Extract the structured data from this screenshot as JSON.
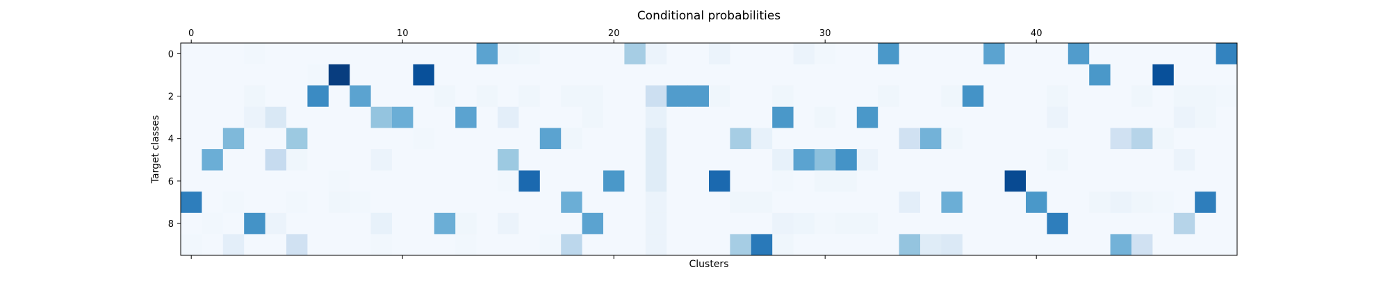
{
  "chart_data": {
    "type": "heatmap",
    "title": "Conditional probabilities",
    "xlabel": "Clusters",
    "ylabel": "Target classes",
    "x_axis_position": "top",
    "x_ticks": [
      "0",
      "10",
      "20",
      "30",
      "40"
    ],
    "x_tick_values": [
      0,
      10,
      20,
      30,
      40
    ],
    "y_ticks": [
      "0",
      "2",
      "4",
      "6",
      "8"
    ],
    "y_tick_values": [
      0,
      2,
      4,
      6,
      8
    ],
    "n_clusters": 50,
    "n_classes": 10,
    "colormap": "Blues",
    "vmin": 0,
    "vmax": 1,
    "grid": false,
    "values": [
      [
        0.02,
        0.02,
        0.02,
        0.03,
        0.02,
        0.02,
        0.02,
        0.02,
        0.02,
        0.02,
        0.02,
        0.02,
        0.02,
        0.02,
        0.55,
        0.05,
        0.04,
        0.02,
        0.02,
        0.02,
        0.02,
        0.35,
        0.06,
        0.02,
        0.02,
        0.06,
        0.02,
        0.02,
        0.02,
        0.06,
        0.03,
        0.02,
        0.02,
        0.6,
        0.02,
        0.02,
        0.02,
        0.02,
        0.55,
        0.02,
        0.02,
        0.02,
        0.58,
        0.02,
        0.02,
        0.02,
        0.02,
        0.02,
        0.02,
        0.68
      ],
      [
        0.02,
        0.02,
        0.02,
        0.02,
        0.02,
        0.02,
        0.03,
        0.95,
        0.02,
        0.02,
        0.02,
        0.88,
        0.02,
        0.02,
        0.02,
        0.02,
        0.02,
        0.02,
        0.02,
        0.02,
        0.02,
        0.02,
        0.02,
        0.02,
        0.02,
        0.02,
        0.02,
        0.02,
        0.02,
        0.02,
        0.02,
        0.02,
        0.02,
        0.02,
        0.02,
        0.02,
        0.02,
        0.02,
        0.02,
        0.02,
        0.02,
        0.02,
        0.02,
        0.6,
        0.02,
        0.02,
        0.88,
        0.02,
        0.02,
        0.02
      ],
      [
        0.02,
        0.02,
        0.02,
        0.04,
        0.02,
        0.02,
        0.65,
        0.02,
        0.55,
        0.02,
        0.02,
        0.02,
        0.04,
        0.02,
        0.04,
        0.02,
        0.04,
        0.02,
        0.04,
        0.04,
        0.02,
        0.02,
        0.22,
        0.58,
        0.58,
        0.04,
        0.02,
        0.02,
        0.04,
        0.02,
        0.02,
        0.02,
        0.02,
        0.04,
        0.02,
        0.02,
        0.04,
        0.62,
        0.02,
        0.02,
        0.02,
        0.04,
        0.02,
        0.02,
        0.02,
        0.04,
        0.02,
        0.04,
        0.04,
        0.03
      ],
      [
        0.02,
        0.02,
        0.02,
        0.06,
        0.15,
        0.02,
        0.02,
        0.02,
        0.02,
        0.4,
        0.5,
        0.02,
        0.02,
        0.55,
        0.02,
        0.1,
        0.02,
        0.02,
        0.02,
        0.04,
        0.02,
        0.02,
        0.08,
        0.02,
        0.02,
        0.02,
        0.02,
        0.02,
        0.6,
        0.02,
        0.04,
        0.02,
        0.6,
        0.02,
        0.02,
        0.02,
        0.02,
        0.02,
        0.02,
        0.02,
        0.02,
        0.06,
        0.02,
        0.02,
        0.02,
        0.02,
        0.02,
        0.06,
        0.04,
        0.02
      ],
      [
        0.02,
        0.02,
        0.45,
        0.02,
        0.02,
        0.38,
        0.02,
        0.02,
        0.02,
        0.02,
        0.02,
        0.03,
        0.02,
        0.02,
        0.02,
        0.02,
        0.02,
        0.55,
        0.04,
        0.02,
        0.02,
        0.02,
        0.12,
        0.02,
        0.02,
        0.02,
        0.35,
        0.08,
        0.02,
        0.02,
        0.02,
        0.02,
        0.02,
        0.02,
        0.2,
        0.48,
        0.04,
        0.02,
        0.02,
        0.02,
        0.02,
        0.02,
        0.02,
        0.02,
        0.2,
        0.3,
        0.04,
        0.02,
        0.02,
        0.02
      ],
      [
        0.02,
        0.5,
        0.02,
        0.02,
        0.25,
        0.04,
        0.02,
        0.02,
        0.02,
        0.06,
        0.02,
        0.02,
        0.02,
        0.02,
        0.02,
        0.38,
        0.02,
        0.02,
        0.02,
        0.02,
        0.02,
        0.02,
        0.12,
        0.02,
        0.02,
        0.02,
        0.02,
        0.02,
        0.08,
        0.55,
        0.42,
        0.62,
        0.06,
        0.02,
        0.02,
        0.02,
        0.02,
        0.02,
        0.02,
        0.02,
        0.02,
        0.04,
        0.02,
        0.02,
        0.02,
        0.02,
        0.02,
        0.06,
        0.02,
        0.02
      ],
      [
        0.02,
        0.02,
        0.02,
        0.02,
        0.02,
        0.02,
        0.02,
        0.03,
        0.02,
        0.02,
        0.02,
        0.02,
        0.02,
        0.02,
        0.02,
        0.03,
        0.78,
        0.02,
        0.02,
        0.02,
        0.6,
        0.02,
        0.12,
        0.02,
        0.02,
        0.78,
        0.02,
        0.02,
        0.03,
        0.02,
        0.04,
        0.04,
        0.02,
        0.02,
        0.02,
        0.02,
        0.02,
        0.02,
        0.02,
        0.9,
        0.02,
        0.02,
        0.02,
        0.02,
        0.02,
        0.02,
        0.02,
        0.02,
        0.02,
        0.02
      ],
      [
        0.7,
        0.02,
        0.03,
        0.02,
        0.02,
        0.03,
        0.02,
        0.04,
        0.03,
        0.02,
        0.02,
        0.02,
        0.02,
        0.02,
        0.02,
        0.02,
        0.02,
        0.02,
        0.5,
        0.02,
        0.02,
        0.02,
        0.06,
        0.02,
        0.02,
        0.02,
        0.04,
        0.04,
        0.02,
        0.02,
        0.02,
        0.02,
        0.02,
        0.02,
        0.1,
        0.02,
        0.5,
        0.02,
        0.02,
        0.02,
        0.6,
        0.02,
        0.02,
        0.04,
        0.06,
        0.04,
        0.03,
        0.02,
        0.7,
        0.02
      ],
      [
        0.02,
        0.03,
        0.02,
        0.62,
        0.06,
        0.02,
        0.02,
        0.02,
        0.02,
        0.08,
        0.02,
        0.02,
        0.5,
        0.04,
        0.02,
        0.06,
        0.02,
        0.02,
        0.02,
        0.55,
        0.02,
        0.02,
        0.06,
        0.02,
        0.02,
        0.02,
        0.02,
        0.02,
        0.06,
        0.05,
        0.03,
        0.04,
        0.04,
        0.02,
        0.02,
        0.02,
        0.02,
        0.02,
        0.02,
        0.02,
        0.02,
        0.7,
        0.02,
        0.02,
        0.02,
        0.02,
        0.02,
        0.3,
        0.02,
        0.02
      ],
      [
        0.03,
        0.02,
        0.1,
        0.02,
        0.02,
        0.2,
        0.02,
        0.02,
        0.02,
        0.03,
        0.02,
        0.02,
        0.02,
        0.03,
        0.02,
        0.02,
        0.02,
        0.03,
        0.28,
        0.02,
        0.02,
        0.02,
        0.06,
        0.02,
        0.02,
        0.02,
        0.35,
        0.72,
        0.04,
        0.02,
        0.02,
        0.02,
        0.02,
        0.02,
        0.4,
        0.12,
        0.14,
        0.02,
        0.02,
        0.02,
        0.02,
        0.02,
        0.02,
        0.02,
        0.48,
        0.2,
        0.02,
        0.02,
        0.02,
        0.02
      ]
    ]
  }
}
